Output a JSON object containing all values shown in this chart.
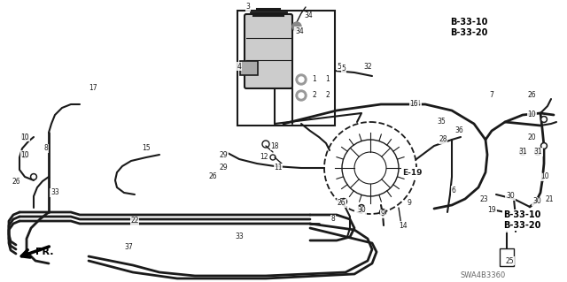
{
  "background_color": "#ffffff",
  "line_color": "#1a1a1a",
  "label_color": "#111111",
  "part_numbers": {
    "top_right_1": "B-33-10",
    "top_right_2": "B-33-20",
    "mid_right_1": "B-33-10",
    "mid_right_2": "B-33-20"
  },
  "label_E19": "E-19",
  "diagram_code": "SWA4B3360",
  "direction_label": "FR."
}
